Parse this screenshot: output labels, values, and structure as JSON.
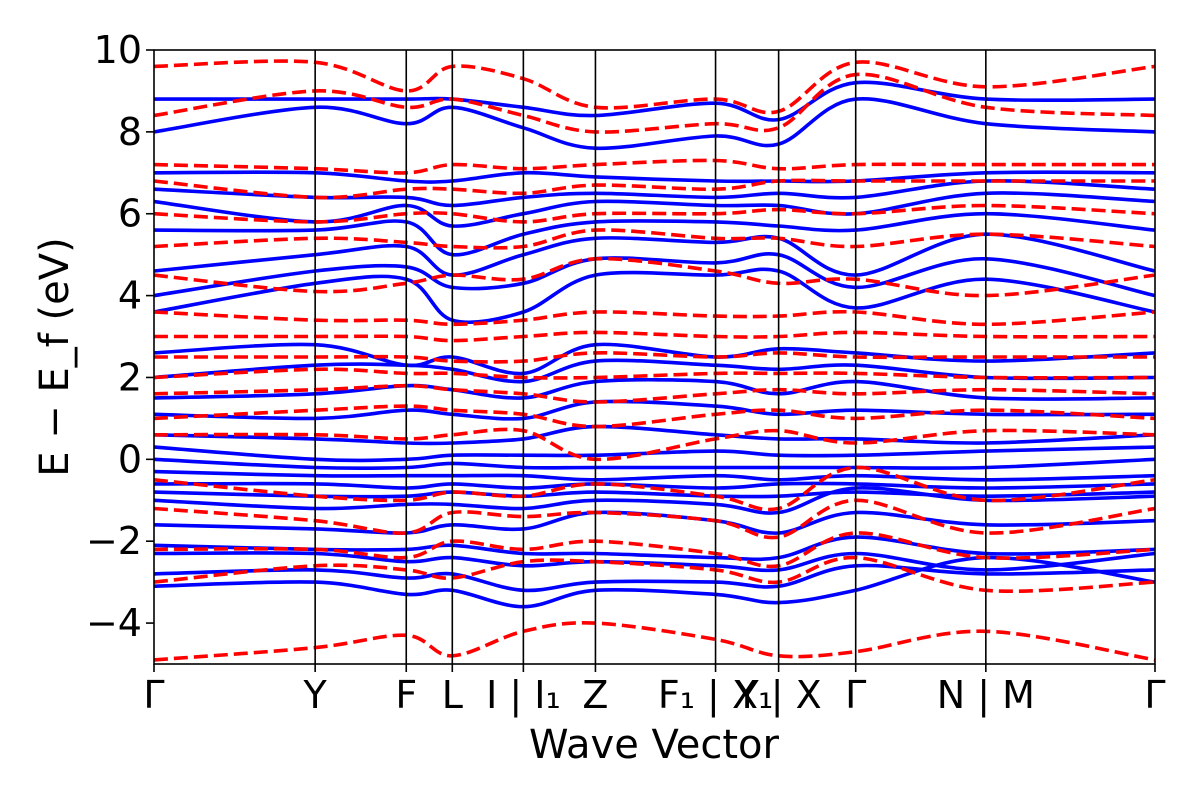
{
  "chart_data": {
    "type": "line",
    "title": "",
    "xlabel": "Wave Vector",
    "ylabel": "E − E_f (eV)",
    "ylim": [
      -5,
      10
    ],
    "yticks": [
      -4,
      -2,
      0,
      2,
      4,
      6,
      8,
      10
    ],
    "ytick_labels": [
      "−4",
      "−2",
      "0",
      "2",
      "4",
      "6",
      "8",
      "10"
    ],
    "x_range": [
      0,
      1
    ],
    "kpoints": [
      {
        "label": "Γ",
        "x": 0.0
      },
      {
        "label": "Y",
        "x": 0.161
      },
      {
        "label": "F",
        "x": 0.252
      },
      {
        "label": "L",
        "x": 0.298
      },
      {
        "label": "I | I₁",
        "x": 0.369
      },
      {
        "label": "Z",
        "x": 0.441
      },
      {
        "label": "F₁ | X₁",
        "x": 0.561
      },
      {
        "label": "Y | X",
        "x": 0.624
      },
      {
        "label": "Γ",
        "x": 0.701
      },
      {
        "label": "N | M",
        "x": 0.831
      },
      {
        "label": "Γ",
        "x": 1.0
      }
    ],
    "grid": false,
    "legend": "none",
    "colors": {
      "spin_up": "#0000ff",
      "spin_down": "#ff0000"
    },
    "series": [
      {
        "style": "solid",
        "color": "#0000ff",
        "bands": [
          [
            -3.1,
            -3.0,
            -3.3,
            -3.2,
            -3.6,
            -3.2,
            -3.3,
            -3.5,
            -3.2,
            -2.4,
            -3.0
          ],
          [
            -2.8,
            -2.7,
            -2.9,
            -2.8,
            -3.2,
            -3.0,
            -3.0,
            -3.1,
            -2.6,
            -2.8,
            -2.7
          ],
          [
            -2.3,
            -2.3,
            -2.5,
            -2.4,
            -2.6,
            -2.5,
            -2.6,
            -2.7,
            -2.3,
            -2.7,
            -2.3
          ],
          [
            -2.1,
            -2.2,
            -2.2,
            -2.1,
            -2.3,
            -2.3,
            -2.4,
            -2.4,
            -1.9,
            -2.3,
            -2.2
          ],
          [
            -1.6,
            -1.7,
            -1.8,
            -1.6,
            -1.7,
            -1.3,
            -1.5,
            -1.8,
            -1.3,
            -1.6,
            -1.5
          ],
          [
            -1.0,
            -1.2,
            -1.1,
            -1.1,
            -1.2,
            -1.0,
            -1.1,
            -1.3,
            -0.7,
            -1.0,
            -0.9
          ],
          [
            -0.8,
            -0.9,
            -0.9,
            -0.8,
            -0.9,
            -0.8,
            -0.9,
            -0.9,
            -0.8,
            -0.9,
            -0.8
          ],
          [
            -0.6,
            -0.6,
            -0.7,
            -0.6,
            -0.7,
            -0.6,
            -0.7,
            -0.6,
            -0.6,
            -0.7,
            -0.6
          ],
          [
            -0.3,
            -0.4,
            -0.4,
            -0.4,
            -0.4,
            -0.5,
            -0.4,
            -0.5,
            -0.4,
            -0.5,
            -0.4
          ],
          [
            0.0,
            -0.2,
            -0.2,
            -0.1,
            -0.2,
            -0.2,
            -0.2,
            -0.2,
            -0.2,
            -0.2,
            0.0
          ],
          [
            0.3,
            0.0,
            0.0,
            0.1,
            0.1,
            0.1,
            0.2,
            0.1,
            0.1,
            0.2,
            0.3
          ],
          [
            0.6,
            0.5,
            0.4,
            0.4,
            0.5,
            0.8,
            0.6,
            0.5,
            0.5,
            0.4,
            0.6
          ],
          [
            1.1,
            1.0,
            1.2,
            1.1,
            1.0,
            1.4,
            1.3,
            1.1,
            1.2,
            1.1,
            1.1
          ],
          [
            1.5,
            1.6,
            1.8,
            1.7,
            1.5,
            1.9,
            1.9,
            1.6,
            1.9,
            1.5,
            1.5
          ],
          [
            2.0,
            2.3,
            2.3,
            2.2,
            1.9,
            2.4,
            2.3,
            2.2,
            2.3,
            2.0,
            2.0
          ],
          [
            2.6,
            2.8,
            2.3,
            2.5,
            2.1,
            2.8,
            2.5,
            2.7,
            2.6,
            2.4,
            2.6
          ],
          [
            3.6,
            4.3,
            4.4,
            3.4,
            3.6,
            4.5,
            4.5,
            4.6,
            3.7,
            4.4,
            3.6
          ],
          [
            4.0,
            4.6,
            4.7,
            4.2,
            4.3,
            4.9,
            4.8,
            5.0,
            4.2,
            4.9,
            4.0
          ],
          [
            4.6,
            5.0,
            5.2,
            4.5,
            5.0,
            5.4,
            5.3,
            5.4,
            4.5,
            5.5,
            4.6
          ],
          [
            5.6,
            5.6,
            5.8,
            5.0,
            5.5,
            5.8,
            5.8,
            5.7,
            5.6,
            6.0,
            5.6
          ],
          [
            6.3,
            5.8,
            6.2,
            5.7,
            6.0,
            6.3,
            6.2,
            6.2,
            6.0,
            6.5,
            6.3
          ],
          [
            6.6,
            6.4,
            6.4,
            6.2,
            6.4,
            6.5,
            6.4,
            6.5,
            6.4,
            6.8,
            6.6
          ],
          [
            7.0,
            7.0,
            6.8,
            6.8,
            7.0,
            6.9,
            6.8,
            6.8,
            6.8,
            7.0,
            7.0
          ],
          [
            8.0,
            8.6,
            8.2,
            8.6,
            8.1,
            7.6,
            7.9,
            7.7,
            8.8,
            8.2,
            8.0
          ],
          [
            8.8,
            8.8,
            8.8,
            8.8,
            8.6,
            8.4,
            8.7,
            8.3,
            9.2,
            8.8,
            8.8
          ]
        ]
      },
      {
        "style": "dashed",
        "color": "#ff0000",
        "bands": [
          [
            -4.9,
            -4.6,
            -4.3,
            -4.8,
            -4.2,
            -4.0,
            -4.4,
            -4.8,
            -4.7,
            -4.2,
            -4.9
          ],
          [
            -3.0,
            -2.6,
            -2.7,
            -2.9,
            -2.5,
            -2.5,
            -2.7,
            -3.0,
            -2.4,
            -3.2,
            -3.0
          ],
          [
            -2.2,
            -2.2,
            -2.4,
            -2.0,
            -2.2,
            -2.0,
            -2.3,
            -2.6,
            -1.8,
            -2.4,
            -2.2
          ],
          [
            -1.2,
            -1.5,
            -1.8,
            -1.3,
            -1.4,
            -1.3,
            -1.5,
            -1.9,
            -1.0,
            -1.8,
            -1.2
          ],
          [
            -0.5,
            -0.9,
            -1.0,
            -0.8,
            -0.9,
            -0.6,
            -0.9,
            -1.2,
            -0.2,
            -1.0,
            -0.5
          ],
          [
            0.6,
            0.6,
            0.5,
            0.6,
            0.7,
            0.0,
            0.5,
            0.7,
            0.4,
            0.7,
            0.6
          ],
          [
            1.0,
            1.2,
            1.3,
            1.2,
            1.1,
            0.8,
            1.1,
            1.2,
            1.0,
            1.2,
            1.0
          ],
          [
            1.6,
            1.7,
            1.8,
            1.7,
            1.6,
            1.4,
            1.6,
            1.7,
            1.6,
            1.7,
            1.6
          ],
          [
            2.0,
            2.2,
            2.1,
            2.1,
            2.0,
            2.0,
            2.1,
            2.1,
            2.1,
            2.0,
            2.0
          ],
          [
            2.5,
            2.5,
            2.5,
            2.4,
            2.4,
            2.6,
            2.5,
            2.6,
            2.5,
            2.5,
            2.5
          ],
          [
            3.0,
            3.0,
            3.0,
            2.9,
            3.0,
            3.1,
            3.0,
            3.0,
            3.1,
            3.0,
            3.0
          ],
          [
            3.6,
            3.4,
            3.4,
            3.3,
            3.4,
            3.6,
            3.5,
            3.5,
            3.6,
            3.3,
            3.6
          ],
          [
            4.5,
            4.1,
            4.3,
            4.5,
            4.4,
            4.9,
            4.6,
            4.3,
            4.4,
            4.0,
            4.5
          ],
          [
            5.2,
            5.4,
            5.3,
            5.2,
            5.2,
            5.6,
            5.4,
            5.4,
            5.2,
            5.5,
            5.2
          ],
          [
            6.0,
            5.8,
            6.0,
            6.0,
            5.8,
            6.0,
            6.0,
            6.1,
            6.0,
            6.2,
            6.0
          ],
          [
            6.8,
            6.4,
            6.6,
            6.6,
            6.5,
            6.7,
            6.6,
            6.8,
            6.8,
            6.8,
            6.8
          ],
          [
            7.2,
            7.1,
            7.0,
            7.2,
            7.1,
            7.2,
            7.3,
            7.1,
            7.2,
            7.2,
            7.2
          ],
          [
            8.4,
            9.0,
            8.6,
            8.8,
            8.4,
            8.0,
            8.2,
            8.1,
            9.4,
            8.6,
            8.4
          ],
          [
            9.6,
            9.7,
            9.0,
            9.6,
            9.3,
            8.6,
            8.8,
            8.5,
            9.7,
            9.1,
            9.6
          ]
        ]
      }
    ]
  }
}
